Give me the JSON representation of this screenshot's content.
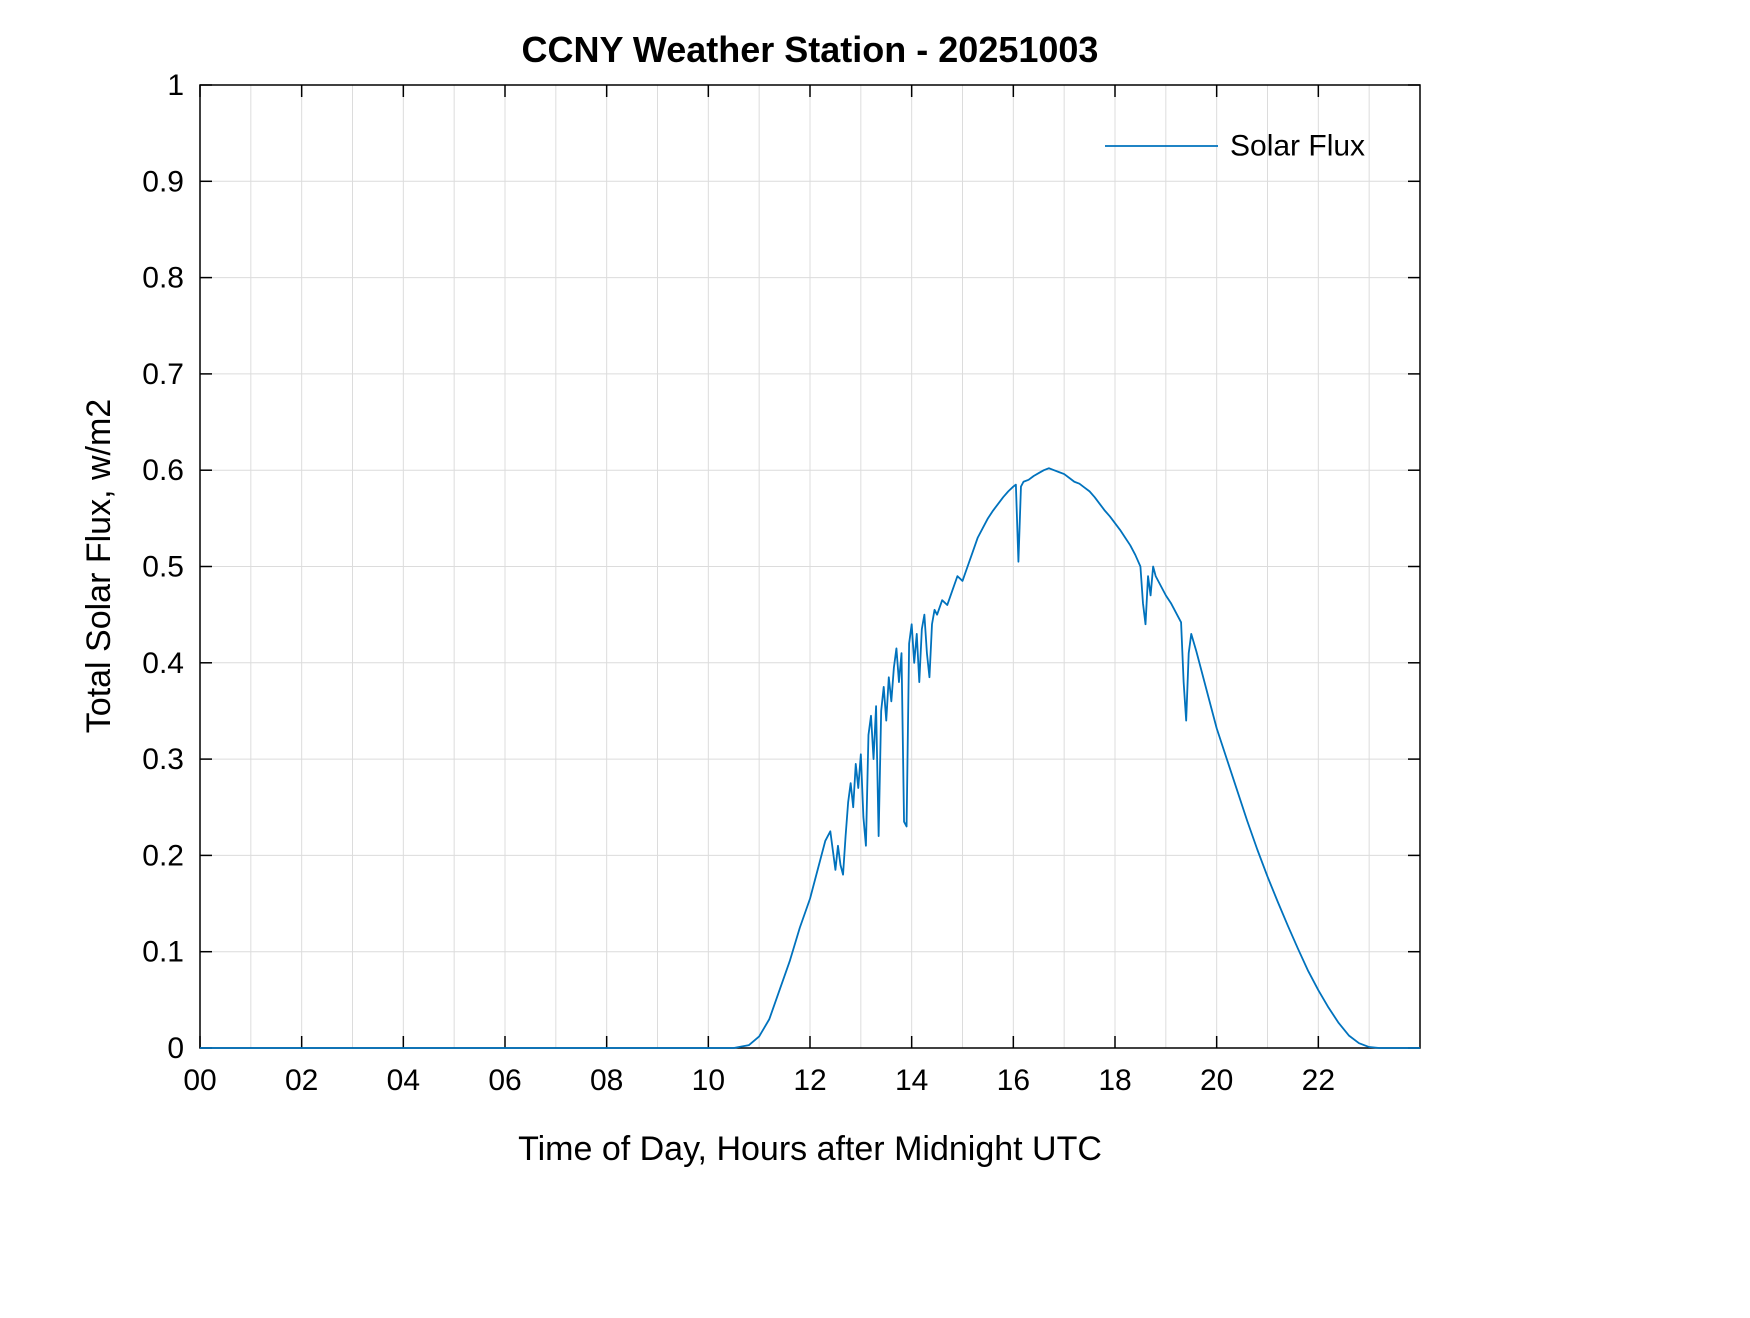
{
  "figure": {
    "title": "CCNY Weather Station - 20251003",
    "legend": {
      "label": "Solar Flux"
    }
  },
  "chart_data": {
    "type": "line",
    "title": "CCNY Weather Station - 20251003",
    "xlabel": "Time of Day, Hours after Midnight UTC",
    "ylabel": "Total Solar Flux, w/m2",
    "xlim": [
      0,
      24
    ],
    "ylim": [
      0,
      1
    ],
    "grid": true,
    "legend_position": "top-right",
    "xticks": [
      0,
      2,
      4,
      6,
      8,
      10,
      12,
      14,
      16,
      18,
      20,
      22
    ],
    "xtick_labels": [
      "00",
      "02",
      "04",
      "06",
      "08",
      "10",
      "12",
      "14",
      "16",
      "18",
      "20",
      "22"
    ],
    "yticks": [
      0,
      0.1,
      0.2,
      0.3,
      0.4,
      0.5,
      0.6,
      0.7,
      0.8,
      0.9,
      1
    ],
    "ytick_labels": [
      "0",
      "0.1",
      "0.2",
      "0.3",
      "0.4",
      "0.5",
      "0.6",
      "0.7",
      "0.8",
      "0.9",
      "1"
    ],
    "series": [
      {
        "name": "Solar Flux",
        "color": "#0072BD",
        "x": [
          0,
          2,
          4,
          6,
          8,
          10,
          10.5,
          10.8,
          11.0,
          11.2,
          11.4,
          11.6,
          11.8,
          12.0,
          12.1,
          12.2,
          12.3,
          12.4,
          12.45,
          12.5,
          12.55,
          12.6,
          12.65,
          12.7,
          12.75,
          12.8,
          12.85,
          12.9,
          12.95,
          13.0,
          13.05,
          13.1,
          13.15,
          13.2,
          13.25,
          13.3,
          13.35,
          13.4,
          13.45,
          13.5,
          13.55,
          13.6,
          13.65,
          13.7,
          13.75,
          13.8,
          13.85,
          13.9,
          13.95,
          14.0,
          14.05,
          14.1,
          14.15,
          14.2,
          14.25,
          14.3,
          14.35,
          14.4,
          14.45,
          14.5,
          14.6,
          14.7,
          14.8,
          14.9,
          15.0,
          15.1,
          15.2,
          15.3,
          15.4,
          15.5,
          15.6,
          15.7,
          15.8,
          15.9,
          16.0,
          16.05,
          16.1,
          16.15,
          16.2,
          16.3,
          16.4,
          16.5,
          16.6,
          16.7,
          16.8,
          16.9,
          17.0,
          17.1,
          17.2,
          17.3,
          17.4,
          17.5,
          17.6,
          17.7,
          17.8,
          17.9,
          18.0,
          18.1,
          18.2,
          18.3,
          18.4,
          18.5,
          18.55,
          18.6,
          18.65,
          18.7,
          18.75,
          18.8,
          18.9,
          19.0,
          19.1,
          19.2,
          19.3,
          19.35,
          19.4,
          19.45,
          19.5,
          19.6,
          19.7,
          19.8,
          19.9,
          20.0,
          20.2,
          20.4,
          20.6,
          20.8,
          21.0,
          21.2,
          21.4,
          21.6,
          21.8,
          22.0,
          22.2,
          22.4,
          22.6,
          22.8,
          23.0,
          23.2,
          23.6,
          24.0
        ],
        "y": [
          0,
          0,
          0,
          0,
          0,
          0,
          0,
          0.003,
          0.012,
          0.03,
          0.06,
          0.09,
          0.125,
          0.155,
          0.175,
          0.195,
          0.215,
          0.225,
          0.205,
          0.185,
          0.21,
          0.19,
          0.18,
          0.22,
          0.255,
          0.275,
          0.25,
          0.295,
          0.27,
          0.305,
          0.24,
          0.21,
          0.325,
          0.345,
          0.3,
          0.355,
          0.22,
          0.35,
          0.375,
          0.34,
          0.385,
          0.36,
          0.395,
          0.415,
          0.38,
          0.41,
          0.235,
          0.23,
          0.42,
          0.44,
          0.4,
          0.43,
          0.38,
          0.435,
          0.45,
          0.41,
          0.385,
          0.44,
          0.455,
          0.45,
          0.465,
          0.46,
          0.475,
          0.49,
          0.485,
          0.5,
          0.515,
          0.53,
          0.54,
          0.55,
          0.558,
          0.565,
          0.572,
          0.578,
          0.583,
          0.585,
          0.505,
          0.583,
          0.588,
          0.59,
          0.594,
          0.597,
          0.6,
          0.602,
          0.6,
          0.598,
          0.596,
          0.592,
          0.588,
          0.586,
          0.582,
          0.578,
          0.572,
          0.565,
          0.558,
          0.552,
          0.545,
          0.538,
          0.53,
          0.522,
          0.512,
          0.5,
          0.462,
          0.44,
          0.49,
          0.47,
          0.5,
          0.49,
          0.48,
          0.47,
          0.462,
          0.452,
          0.442,
          0.38,
          0.34,
          0.41,
          0.43,
          0.412,
          0.392,
          0.372,
          0.352,
          0.332,
          0.3,
          0.268,
          0.236,
          0.206,
          0.178,
          0.152,
          0.127,
          0.103,
          0.08,
          0.06,
          0.042,
          0.026,
          0.013,
          0.005,
          0.001,
          0,
          0,
          0
        ]
      }
    ]
  }
}
